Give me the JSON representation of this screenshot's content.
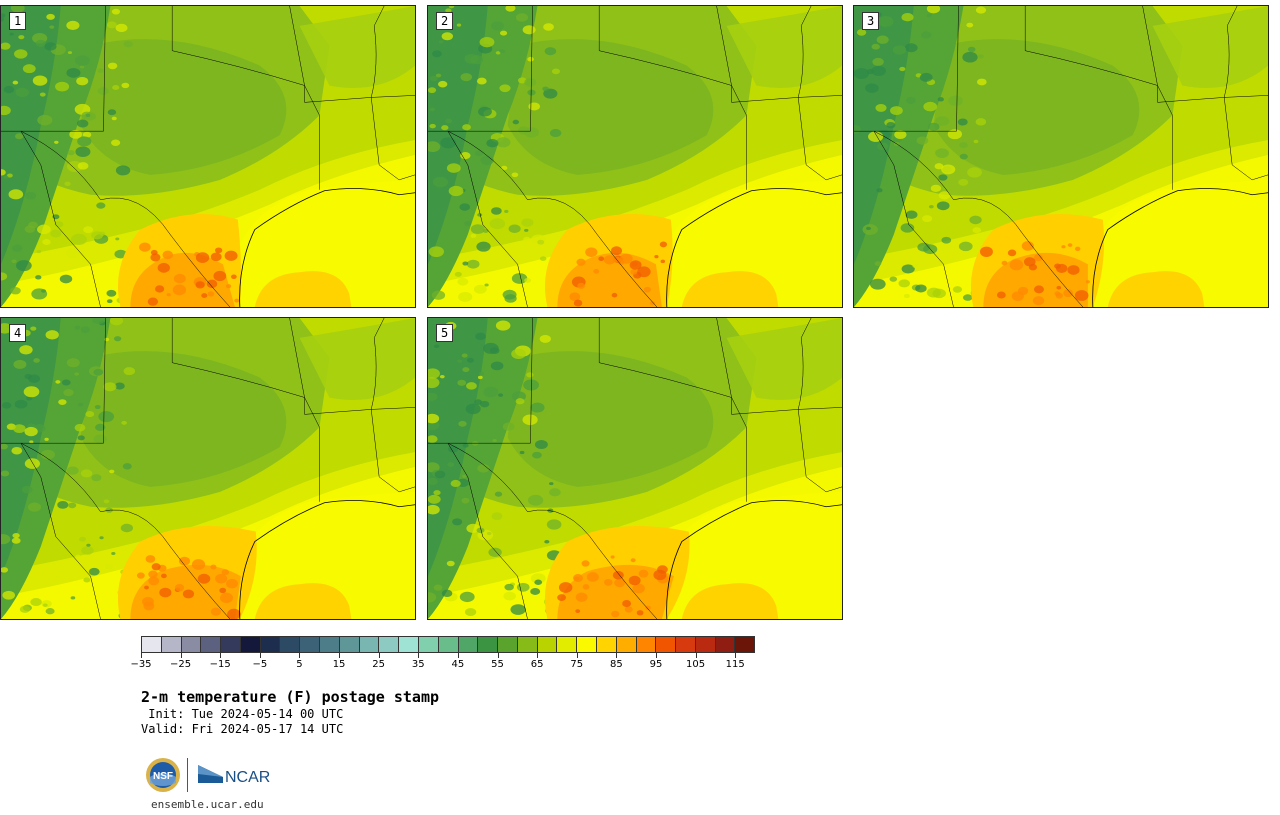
{
  "panels": [
    {
      "label": "1",
      "map_variant": 1
    },
    {
      "label": "2",
      "map_variant": 2
    },
    {
      "label": "3",
      "map_variant": 3
    },
    {
      "label": "4",
      "map_variant": 4
    },
    {
      "label": "5",
      "map_variant": 5
    }
  ],
  "colorbar": {
    "tick_labels": [
      "−35",
      "−25",
      "−15",
      "−5",
      "5",
      "15",
      "25",
      "35",
      "45",
      "55",
      "65",
      "75",
      "85",
      "95",
      "105",
      "115"
    ],
    "colors": [
      "#e6e6ef",
      "#b5b6c8",
      "#8a8ca3",
      "#5d6180",
      "#343a5c",
      "#14183a",
      "#1c2d4d",
      "#2c4a64",
      "#3b6277",
      "#4d7d89",
      "#5f9799",
      "#79b5b1",
      "#8ccac2",
      "#9ee3d3",
      "#80d0ad",
      "#68bd8a",
      "#4fa666",
      "#3a9441",
      "#5aa32c",
      "#86bb18",
      "#b8d300",
      "#e2ec00",
      "#fbf900",
      "#ffd400",
      "#ffae00",
      "#ff8400",
      "#f25500",
      "#d83a10",
      "#b92a10",
      "#8f1d12",
      "#6b1408"
    ]
  },
  "title": "2-m temperature (F) postage stamp",
  "init_text": " Init: Tue 2024-05-14 00 UTC",
  "valid_text": "Valid: Fri 2024-05-17 14 UTC",
  "logos": {
    "nsf": "NSF",
    "ncar": "NCAR"
  },
  "website": "ensemble.ucar.edu"
}
